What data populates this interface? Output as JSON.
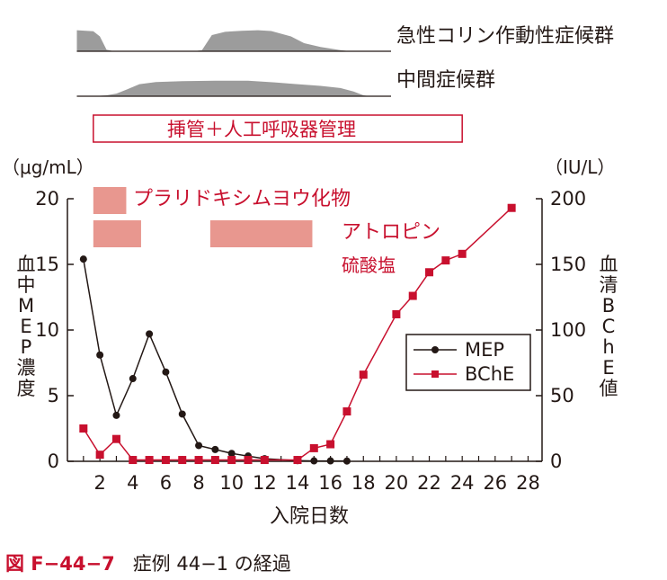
{
  "timeline": {
    "cholinergic_label": "急性コリン作動性症候群",
    "intermediate_label": "中間症候群",
    "ventilation_label": "挿管＋人工呼吸器管理",
    "pralidoxime_label": "プラリドキシムヨウ化物",
    "atropine_label_line1": "アトロピン",
    "atropine_label_line2": "硫酸塩"
  },
  "axes": {
    "left_unit": "（μg/mL）",
    "right_unit": "（IU/L）",
    "left_label_chars": [
      "血",
      "中",
      "M",
      "E",
      "P",
      "濃",
      "度"
    ],
    "right_label_chars": [
      "血",
      "清",
      "B",
      "C",
      "h",
      "E",
      "値"
    ],
    "xlabel": "入院日数"
  },
  "legend": {
    "mep": "MEP",
    "bche": "BChE"
  },
  "caption": {
    "number": "図 F−44−7",
    "title": "症例 44−1 の経過"
  },
  "colors": {
    "mep": "#231815",
    "bche": "#c8102e",
    "bar": "#e8978f",
    "profile": "#9c9c9c"
  },
  "chart_data": {
    "type": "line",
    "x_ticks": [
      2,
      4,
      6,
      8,
      10,
      12,
      14,
      16,
      18,
      20,
      22,
      24,
      26,
      28
    ],
    "xlim": [
      0,
      29
    ],
    "left_ticks": [
      0,
      5,
      10,
      15,
      20
    ],
    "right_ticks": [
      0,
      50,
      100,
      150,
      200
    ],
    "ylim_left": [
      0,
      20
    ],
    "ylim_right": [
      0,
      200
    ],
    "series": [
      {
        "name": "MEP",
        "axis": "left",
        "marker": "circle",
        "x": [
          1,
          2,
          3,
          4,
          5,
          6,
          7,
          8,
          9,
          10,
          11,
          12,
          14,
          15,
          16,
          17
        ],
        "y": [
          15.4,
          8.1,
          3.5,
          6.3,
          9.7,
          6.8,
          3.6,
          1.2,
          0.9,
          0.6,
          0.4,
          0.2,
          0.05,
          0.03,
          0.03,
          0.02
        ]
      },
      {
        "name": "BChE",
        "axis": "right",
        "marker": "square",
        "x": [
          1,
          2,
          3,
          4,
          5,
          6,
          7,
          8,
          9,
          10,
          11,
          12,
          14,
          15,
          16,
          17,
          18,
          20,
          21,
          22,
          23,
          24,
          27
        ],
        "y": [
          25,
          5,
          17,
          1,
          1,
          1,
          1,
          1,
          1,
          1,
          1,
          1,
          1,
          10,
          13,
          38,
          66,
          112,
          126,
          144,
          153,
          158,
          193
        ]
      }
    ],
    "treatment_bars": [
      {
        "name": "プラリドキシムヨウ化物",
        "start": 1.6,
        "end": 3.6
      },
      {
        "name": "プラリドキシムヨウ化物",
        "start": 1.6,
        "end": 4.5
      },
      {
        "name": "アトロピン硫酸塩",
        "start": 8.7,
        "end": 14.9
      }
    ],
    "ventilation": {
      "start": 1.6,
      "end": 24.0
    },
    "cholinergic_syndrome": [
      [
        0.6,
        78
      ],
      [
        1.6,
        74
      ],
      [
        2.0,
        55
      ],
      [
        2.4,
        6
      ],
      [
        2.8,
        1
      ],
      [
        7.8,
        1
      ],
      [
        8.2,
        4
      ],
      [
        8.8,
        60
      ],
      [
        9.6,
        72
      ],
      [
        10.6,
        76
      ],
      [
        11.6,
        78
      ],
      [
        12.4,
        75
      ],
      [
        13.6,
        55
      ],
      [
        14.4,
        30
      ],
      [
        15.4,
        16
      ],
      [
        16.6,
        4
      ],
      [
        17.2,
        0
      ]
    ],
    "intermediate_syndrome": [
      [
        0.6,
        0
      ],
      [
        1.6,
        0
      ],
      [
        2.4,
        4
      ],
      [
        3.0,
        12
      ],
      [
        3.6,
        30
      ],
      [
        4.4,
        56
      ],
      [
        5.4,
        66
      ],
      [
        7.0,
        70
      ],
      [
        9.0,
        72
      ],
      [
        11.0,
        72
      ],
      [
        12.6,
        64
      ],
      [
        14.0,
        56
      ],
      [
        15.4,
        48
      ],
      [
        16.6,
        38
      ],
      [
        17.4,
        22
      ],
      [
        18.0,
        4
      ],
      [
        18.4,
        0
      ]
    ]
  }
}
